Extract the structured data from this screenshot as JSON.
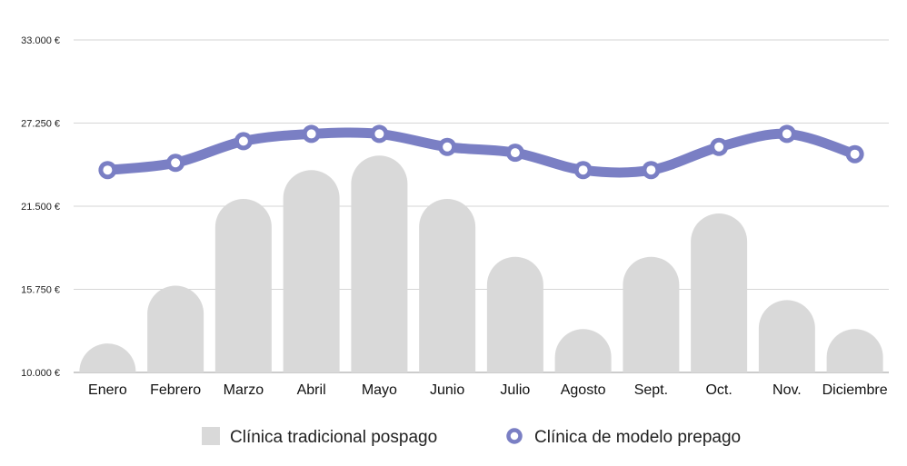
{
  "chart_data": {
    "type": "bar",
    "categories": [
      "Enero",
      "Febrero",
      "Marzo",
      "Abril",
      "Mayo",
      "Junio",
      "Julio",
      "Agosto",
      "Sept.",
      "Oct.",
      "Nov.",
      "Diciembre"
    ],
    "series": [
      {
        "name": "Clínica tradicional pospago",
        "kind": "bar",
        "color": "#d9d9d9",
        "values": [
          12000,
          16000,
          22000,
          24000,
          25000,
          22000,
          18000,
          13000,
          18000,
          21000,
          15000,
          13000
        ]
      },
      {
        "name": "Clínica de modelo prepago",
        "kind": "line",
        "color": "#7a7fc4",
        "values": [
          24000,
          24500,
          26000,
          26500,
          26500,
          25600,
          25200,
          24000,
          24000,
          25600,
          26500,
          25100
        ]
      }
    ],
    "yticks": [
      "10.000 €",
      "15.750 €",
      "21.500 €",
      "27.250 €",
      "33.000 €"
    ],
    "ytick_values": [
      10000,
      15750,
      21500,
      27250,
      33000
    ],
    "ylim": [
      10000,
      33000
    ],
    "grid": true,
    "legend_position": "bottom"
  }
}
